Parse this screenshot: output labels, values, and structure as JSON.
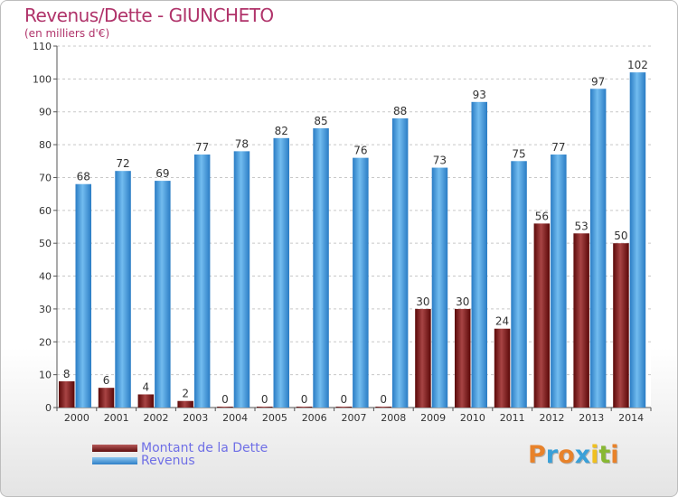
{
  "chart_data": {
    "type": "bar",
    "title": "Revenus/Dette - GIUNCHETO",
    "subtitle": "(en milliers d'€)",
    "xlabel": "",
    "ylabel": "",
    "ylim": [
      0,
      110
    ],
    "yticks": [
      0,
      10,
      20,
      30,
      40,
      50,
      60,
      70,
      80,
      90,
      100,
      110
    ],
    "grid": true,
    "legend_position": "bottom-left",
    "categories": [
      "2000",
      "2001",
      "2002",
      "2003",
      "2004",
      "2005",
      "2006",
      "2007",
      "2008",
      "2009",
      "2010",
      "2011",
      "2012",
      "2013",
      "2014"
    ],
    "series": [
      {
        "name": "Montant de la Dette",
        "color": "#7a1a1a",
        "values": [
          8,
          6,
          4,
          2,
          0,
          0,
          0,
          0,
          0,
          30,
          30,
          24,
          56,
          53,
          50
        ]
      },
      {
        "name": "Revenus",
        "color": "#3a94d8",
        "values": [
          68,
          72,
          69,
          77,
          78,
          82,
          85,
          76,
          88,
          73,
          93,
          75,
          77,
          97,
          102
        ]
      }
    ]
  },
  "brand": {
    "logo_letters": [
      "P",
      "r",
      "o",
      "x",
      "i",
      "t",
      "i"
    ],
    "logo_colors": [
      "#e8822a",
      "#3aa0d8",
      "#e8822a",
      "#3aa0d8",
      "#f0c020",
      "#88b833",
      "#e8822a"
    ]
  }
}
